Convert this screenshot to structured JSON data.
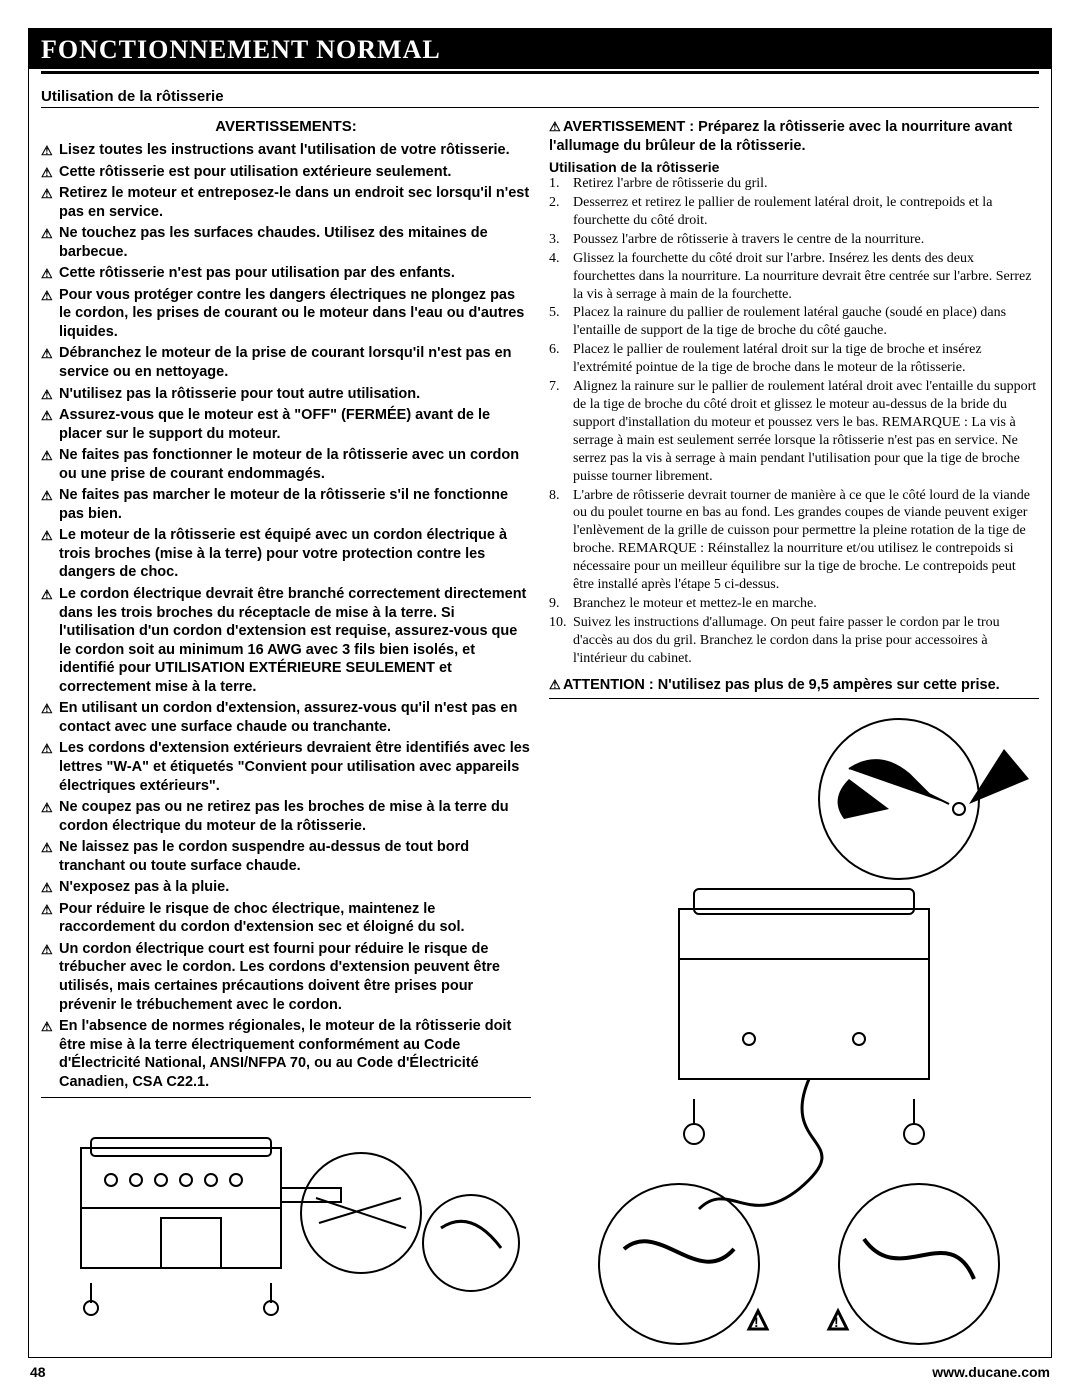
{
  "title": "FONCTIONNEMENT NORMAL",
  "section_heading": "Utilisation de la rôtisserie",
  "warnings_heading": "AVERTISSEMENTS:",
  "warning_glyph": "⚠",
  "warnings": [
    "Lisez toutes les instructions avant l'utilisation de votre rôtisserie.",
    "Cette rôtisserie est pour utilisation extérieure seulement.",
    "Retirez le moteur et entreposez-le dans un endroit sec lorsqu'il n'est pas en service.",
    "Ne touchez pas les surfaces chaudes. Utilisez des mitaines de barbecue.",
    "Cette rôtisserie n'est pas pour utilisation par des enfants.",
    "Pour vous protéger contre les dangers électriques ne plongez pas le cordon, les prises de courant ou le moteur dans l'eau ou d'autres liquides.",
    "Débranchez le moteur de la prise de courant lorsqu'il n'est pas en service ou en nettoyage.",
    "N'utilisez pas la rôtisserie pour tout autre utilisation.",
    "Assurez-vous que le moteur est à \"OFF\" (FERMÉE) avant de le placer sur le support du moteur.",
    "Ne faites pas fonctionner le moteur de la rôtisserie avec un cordon ou une prise de courant endommagés.",
    "Ne faites pas marcher le moteur de la rôtisserie s'il ne fonctionne pas bien.",
    "Le moteur de la rôtisserie est équipé avec un cordon électrique à trois broches (mise à la terre) pour votre protection contre les dangers de choc.",
    "Le cordon électrique devrait être branché correctement directement dans les trois broches du réceptacle de mise à la terre. Si l'utilisation d'un cordon d'extension est requise, assurez-vous que le cordon soit au minimum 16 AWG avec 3 fils bien isolés, et identifié pour UTILISATION EXTÉRIEURE SEULEMENT et correctement mise à la terre.",
    "En utilisant un cordon d'extension, assurez-vous qu'il n'est pas en contact avec une surface chaude ou tranchante.",
    "Les cordons d'extension extérieurs devraient être identifiés avec les lettres \"W-A\" et étiquetés \"Convient pour utilisation avec appareils électriques extérieurs\".",
    "Ne coupez pas ou ne retirez pas les broches de mise à la terre du cordon électrique du moteur de la rôtisserie.",
    "Ne laissez pas le cordon suspendre au-dessus de tout bord tranchant ou toute surface chaude.",
    "N'exposez pas à la pluie.",
    "Pour réduire le risque de choc électrique, maintenez le raccordement du cordon d'extension sec et éloigné du sol.",
    "Un cordon électrique court est fourni pour réduire le risque de trébucher avec le cordon. Les cordons d'extension peuvent être utilisés, mais certaines précautions doivent être prises pour prévenir le trébuchement avec le cordon.",
    "En l'absence de normes régionales, le moteur de la rôtisserie doit être mise à la terre électriquement conformément au Code d'Électricité National, ANSI/NFPA 70, ou au Code d'Électricité Canadien, CSA C22.1."
  ],
  "right": {
    "av_line": "AVERTISSEMENT : Préparez la rôtisserie avec la nourriture avant l'allumage du brûleur de la rôtisserie.",
    "sub_heading": "Utilisation de la rôtisserie",
    "steps": [
      "Retirez l'arbre de rôtisserie du gril.",
      "Desserrez et retirez le pallier de roulement latéral droit, le contrepoids et la fourchette du côté droit.",
      "Poussez l'arbre de rôtisserie à travers le centre de la nourriture.",
      "Glissez la fourchette du côté droit sur l'arbre. Insérez les dents des deux fourchettes dans la nourriture. La nourriture devrait être centrée sur l'arbre. Serrez la vis à serrage à main de la fourchette.",
      "Placez la rainure du pallier de roulement latéral gauche (soudé en place) dans l'entaille de support de la tige de broche du côté gauche.",
      "Placez le pallier de roulement latéral droit sur la tige de broche et insérez l'extrémité pointue de la tige de broche dans le moteur de la rôtisserie.",
      "Alignez la rainure sur le pallier de roulement latéral droit avec l'entaille du support de la tige de broche du côté droit et glissez le moteur au-dessus de la bride du support d'installation du moteur et poussez vers le bas. REMARQUE : La vis à serrage à main est seulement serrée lorsque la rôtisserie n'est pas en service. Ne serrez pas la vis à serrage à main pendant l'utilisation pour que la tige de broche puisse tourner librement.",
      "L'arbre de rôtisserie devrait tourner de manière à ce que le côté lourd de la viande ou du poulet tourne en bas au fond. Les grandes coupes de viande peuvent exiger l'enlèvement de la grille de cuisson pour permettre la pleine rotation de la tige de broche. REMARQUE : Réinstallez la nourriture et/ou utilisez le contrepoids si nécessaire pour un meilleur équilibre sur la tige de broche. Le contrepoids peut être installé après l'étape 5 ci-dessus.",
      "Branchez le moteur et mettez-le en marche.",
      "Suivez les instructions d'allumage. On peut faire passer le cordon par le trou d'accès au dos du gril. Branchez le cordon dans la prise pour accessoires à l'intérieur du cabinet."
    ],
    "attention": "ATTENTION : N'utilisez pas plus de 9,5 ampères sur cette prise."
  },
  "footer": {
    "page_number": "48",
    "url": "www.ducane.com"
  },
  "colors": {
    "black": "#000000",
    "white": "#ffffff"
  }
}
